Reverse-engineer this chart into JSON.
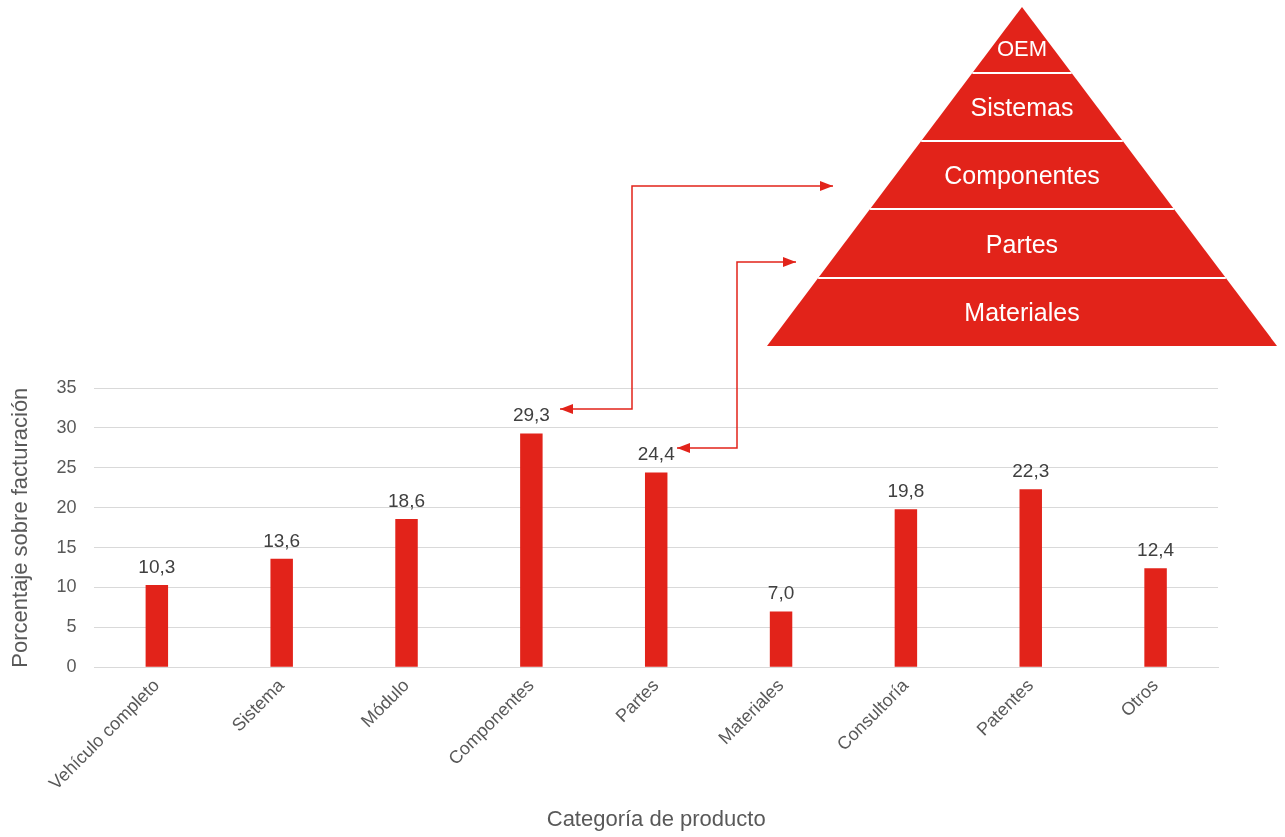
{
  "chart_data": {
    "type": "bar",
    "xlabel": "Categoría de producto",
    "ylabel": "Porcentaje sobre facturación",
    "categories": [
      "Vehículo completo",
      "Sistema",
      "Módulo",
      "Componentes",
      "Partes",
      "Materiales",
      "Consultoría",
      "Patentes",
      "Otros"
    ],
    "values": [
      10.3,
      13.6,
      18.6,
      29.3,
      24.4,
      7.0,
      19.8,
      22.3,
      12.4
    ],
    "value_labels": [
      "10,3",
      "13,6",
      "18,6",
      "29,3",
      "24,4",
      "7,0",
      "19,8",
      "22,3",
      "12,4"
    ],
    "color": "#e2231a",
    "ylim": [
      0,
      35
    ],
    "yticks": [
      0,
      5,
      10,
      15,
      20,
      25,
      30,
      35
    ],
    "grid": "y",
    "legend": false,
    "annotations": [
      "OEM",
      "Sistemas",
      "Componentes",
      "Partes",
      "Materiales"
    ]
  }
}
